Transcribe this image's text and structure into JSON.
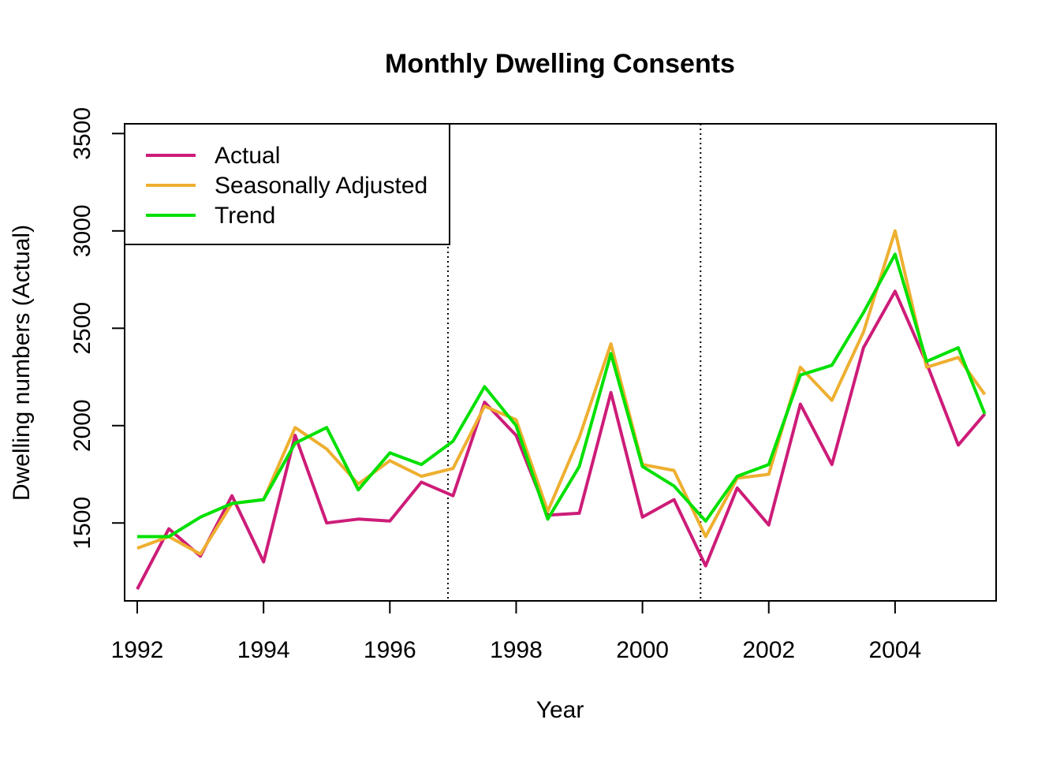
{
  "chart_data": {
    "type": "line",
    "title": "Monthly Dwelling Consents",
    "xlabel": "Year",
    "ylabel": "Dwelling numbers (Actual)",
    "xlim": [
      1991.8,
      2005.6
    ],
    "ylim": [
      1100,
      3550
    ],
    "x_ticks": [
      1992,
      1994,
      1996,
      1998,
      2000,
      2002,
      2004
    ],
    "x_tick_labels": [
      "1992",
      "1994",
      "1996",
      "1998",
      "2000",
      "2002",
      "2004"
    ],
    "y_ticks": [
      1500,
      2000,
      2500,
      3000,
      3500
    ],
    "y_tick_labels": [
      "1500",
      "2000",
      "2500",
      "3000",
      "3500"
    ],
    "vlines": [
      1996.92,
      2000.92
    ],
    "grid": false,
    "legend": {
      "position": "top-left",
      "entries": [
        "Actual",
        "Seasonally Adjusted",
        "Trend"
      ]
    },
    "series": [
      {
        "name": "Actual",
        "color": "#cd1c78",
        "x": [
          1992.0,
          1992.5,
          1993.0,
          1993.5,
          1994.0,
          1994.5,
          1995.0,
          1995.5,
          1996.0,
          1996.5,
          1997.0,
          1997.5,
          1998.0,
          1998.5,
          1999.0,
          1999.5,
          2000.0,
          2000.5,
          2001.0,
          2001.5,
          2002.0,
          2002.5,
          2003.0,
          2003.5,
          2004.0,
          2004.5,
          2005.0,
          2005.42
        ],
        "values": [
          1160,
          1470,
          1330,
          1640,
          1300,
          1950,
          1500,
          1520,
          1510,
          1710,
          1640,
          2120,
          1950,
          1540,
          1550,
          2170,
          1530,
          1620,
          1280,
          1680,
          1490,
          2110,
          1800,
          2400,
          2690,
          2320,
          1900,
          2060
        ]
      },
      {
        "name": "Seasonally Adjusted",
        "color": "#eeaf30",
        "x": [
          1992.0,
          1992.5,
          1993.0,
          1993.5,
          1994.0,
          1994.5,
          1995.0,
          1995.5,
          1996.0,
          1996.5,
          1997.0,
          1997.5,
          1998.0,
          1998.5,
          1999.0,
          1999.5,
          2000.0,
          2000.5,
          2001.0,
          2001.5,
          2002.0,
          2002.5,
          2003.0,
          2003.5,
          2004.0,
          2004.5,
          2005.0,
          2005.42
        ],
        "values": [
          1370,
          1430,
          1340,
          1600,
          1620,
          1990,
          1880,
          1700,
          1820,
          1740,
          1780,
          2100,
          2030,
          1560,
          1940,
          2420,
          1800,
          1770,
          1430,
          1730,
          1750,
          2300,
          2130,
          2480,
          3000,
          2300,
          2350,
          2160
        ]
      },
      {
        "name": "Trend",
        "color": "#00e000",
        "x": [
          1992.0,
          1992.5,
          1993.0,
          1993.5,
          1994.0,
          1994.5,
          1995.0,
          1995.5,
          1996.0,
          1996.5,
          1997.0,
          1997.5,
          1998.0,
          1998.5,
          1999.0,
          1999.5,
          2000.0,
          2000.5,
          2001.0,
          2001.5,
          2002.0,
          2002.5,
          2003.0,
          2003.5,
          2004.0,
          2004.5,
          2005.0,
          2005.42
        ],
        "values": [
          1430,
          1430,
          1530,
          1600,
          1620,
          1910,
          1990,
          1670,
          1860,
          1800,
          1920,
          2200,
          2000,
          1520,
          1790,
          2370,
          1790,
          1690,
          1510,
          1740,
          1800,
          2260,
          2310,
          2580,
          2880,
          2330,
          2400,
          2060
        ]
      }
    ]
  }
}
